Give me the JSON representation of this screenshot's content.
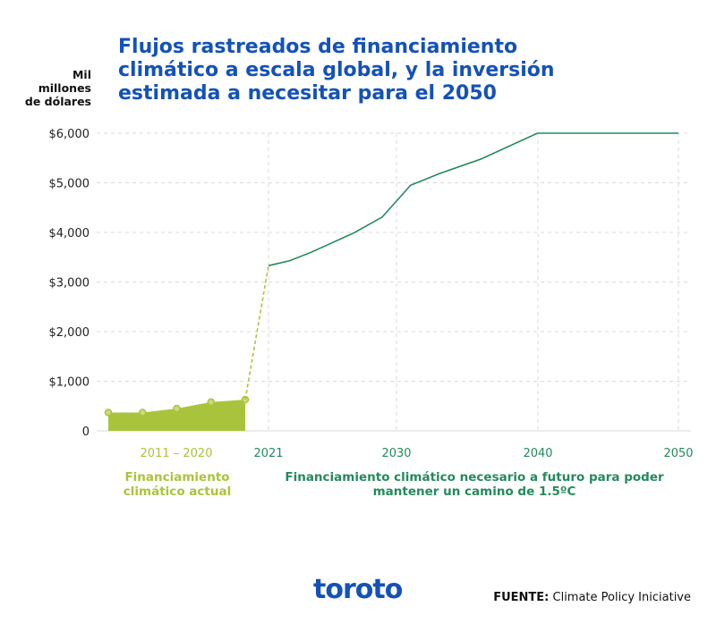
{
  "title": "Flujos rastreados de financiamiento climático a escala global, y la inversión estimada a necesitar para el 2050",
  "ylabel_lines": [
    "Mil",
    "millones",
    "de dólares"
  ],
  "colors": {
    "title": "#1452b8",
    "actual": "#a9c43c",
    "future": "#248a5c",
    "grid": "#d9d9d9"
  },
  "chart_data": {
    "type": "line",
    "title": "Flujos rastreados de financiamiento climático a escala global, y la inversión estimada a necesitar para el 2050",
    "ylabel": "Mil millones de dólares",
    "xlabel": "",
    "ylim": [
      0,
      6000
    ],
    "y_ticks": [
      0,
      1000,
      2000,
      3000,
      4000,
      5000,
      6000
    ],
    "y_tick_labels": [
      "0",
      "$1,000",
      "$2,000",
      "$3,000",
      "$4,000",
      "$5,000",
      "$6,000"
    ],
    "x_tick_labels": [
      "2011 – 2020",
      "2021",
      "2030",
      "2040",
      "2050"
    ],
    "grid": true,
    "series": [
      {
        "name": "Financiamiento climático actual",
        "style": "area",
        "x": [
          2011,
          2013.5,
          2016,
          2018.5,
          2021
        ],
        "values": [
          370,
          370,
          450,
          580,
          630
        ]
      },
      {
        "name": "Financiamiento climático necesario a futuro para poder mantener un camino de 1.5ºC",
        "style": "line",
        "x": [
          2021,
          2022.5,
          2024,
          2027,
          2029,
          2031,
          2033,
          2036,
          2040,
          2050
        ],
        "values": [
          3330,
          3430,
          3600,
          3990,
          4310,
          4950,
          5180,
          5480,
          6000,
          6000
        ]
      }
    ],
    "connector": {
      "style": "dashed",
      "x": [
        2021,
        2023
      ],
      "values": [
        630,
        3330
      ]
    }
  },
  "category_labels": {
    "actual": [
      "Financiamiento",
      "climático actual"
    ],
    "future": [
      "Financiamiento climático necesario a futuro para poder",
      "mantener un camino de 1.5ºC"
    ]
  },
  "logo": "toroto",
  "source": {
    "label": "FUENTE:",
    "text": "Climate Policy Iniciative"
  }
}
